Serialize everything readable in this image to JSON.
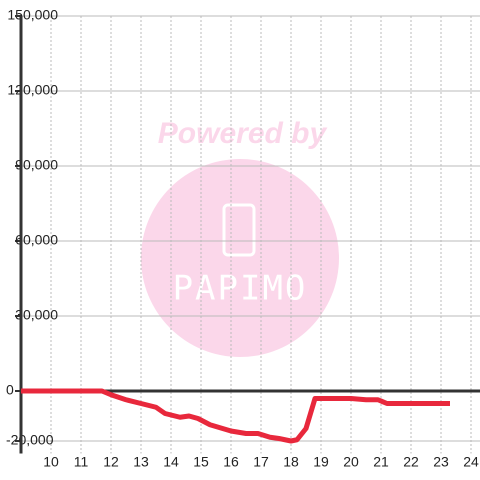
{
  "chart_data": {
    "type": "line",
    "watermark": [
      "Powered by",
      "PAPIMO"
    ],
    "x": [
      9,
      11.7,
      12.0,
      12.5,
      13.0,
      13.5,
      13.8,
      14.3,
      14.6,
      14.9,
      15.3,
      16.0,
      16.5,
      16.9,
      17.3,
      17.6,
      18.0,
      18.2,
      18.5,
      18.8,
      20.0,
      20.5,
      20.9,
      21.2,
      23.3
    ],
    "series": [
      {
        "color": "#e8283c",
        "values": [
          0,
          0,
          -1500,
          -3500,
          -5000,
          -6500,
          -9000,
          -10500,
          -10000,
          -11000,
          -13500,
          -16000,
          -17000,
          -17000,
          -18500,
          -19000,
          -20000,
          -19500,
          -15000,
          -3000,
          -3000,
          -3500,
          -3500,
          -5000,
          -5000
        ]
      }
    ],
    "xlim": [
      9,
      24.3
    ],
    "xticks": [
      10,
      11,
      12,
      13,
      14,
      15,
      16,
      17,
      18,
      19,
      20,
      21,
      22,
      23,
      24
    ],
    "ylim": [
      -25000,
      150000
    ],
    "yticks": [
      {
        "value": -20000,
        "label": "-20,000"
      },
      0,
      {
        "value": 30000,
        "label": "30,000"
      },
      {
        "value": 60000,
        "label": "60,000"
      },
      {
        "value": 90000,
        "label": "90,000"
      },
      {
        "value": 120000,
        "label": "120,000"
      },
      {
        "value": 150000,
        "label": "150,000"
      }
    ],
    "grid": true
  }
}
